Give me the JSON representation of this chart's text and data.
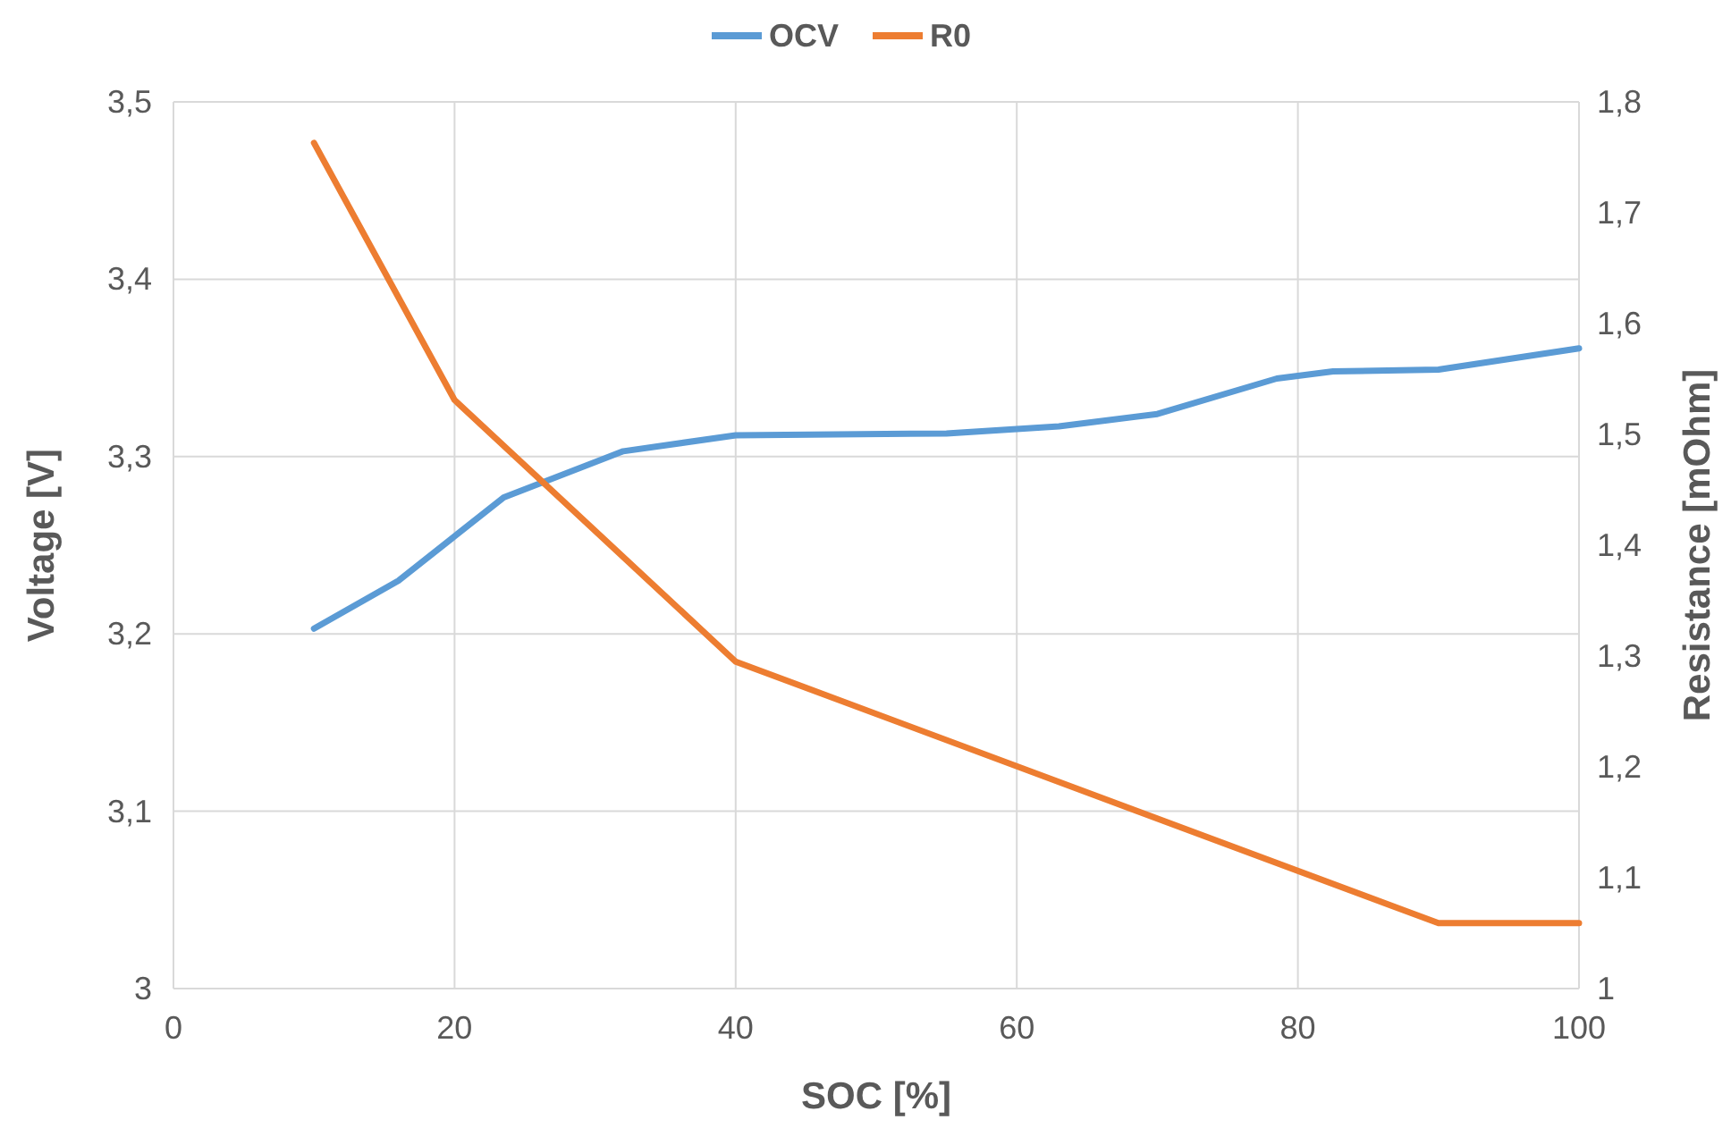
{
  "chart_data": {
    "type": "line",
    "xlabel": "SOC [%]",
    "ylabel": "Voltage [V]",
    "y2label": "Resistance [mOhm]",
    "legend": "top",
    "grid": true,
    "line_style": "solid",
    "xlim": [
      0,
      100
    ],
    "xticks": [
      0,
      20,
      40,
      60,
      80,
      100
    ],
    "ylim": [
      3,
      3.5
    ],
    "yticks": [
      3,
      {
        "value": 3.1,
        "label": "3,1"
      },
      {
        "value": 3.2,
        "label": "3,2"
      },
      {
        "value": 3.3,
        "label": "3,3"
      },
      {
        "value": 3.4,
        "label": "3,4"
      },
      {
        "value": 3.5,
        "label": "3,5"
      }
    ],
    "y2lim": [
      1,
      1.8
    ],
    "y2ticks": [
      1,
      {
        "value": 1.1,
        "label": "1,1"
      },
      {
        "value": 1.2,
        "label": "1,2"
      },
      {
        "value": 1.3,
        "label": "1,3"
      },
      {
        "value": 1.4,
        "label": "1,4"
      },
      {
        "value": 1.5,
        "label": "1,5"
      },
      {
        "value": 1.6,
        "label": "1,6"
      },
      {
        "value": 1.7,
        "label": "1,7"
      },
      {
        "value": 1.8,
        "label": "1,8"
      }
    ],
    "series": [
      {
        "name": "OCV",
        "color": "#5b9bd5",
        "x": [
          10,
          16,
          23.5,
          32,
          40,
          55,
          63,
          70,
          78.5,
          82.5,
          90,
          100
        ],
        "values": [
          3.203,
          3.23,
          3.277,
          3.303,
          3.312,
          3.313,
          3.317,
          3.324,
          3.344,
          3.348,
          3.349,
          3.361
        ]
      },
      {
        "name": "R0",
        "color": "#ed7d31",
        "axis": "y2",
        "x": [
          10,
          20,
          40,
          90,
          100
        ],
        "values": [
          1.763,
          1.531,
          1.295,
          1.059,
          1.059
        ]
      }
    ]
  }
}
